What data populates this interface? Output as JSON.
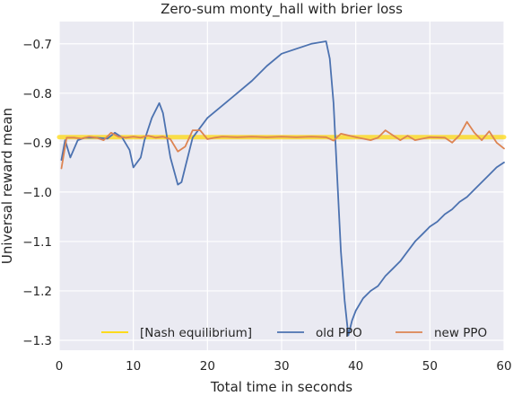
{
  "chart_data": {
    "type": "line",
    "title": "Zero-sum monty_hall with brier loss",
    "xlabel": "Total time in seconds",
    "ylabel": "Universal reward mean",
    "xlim": [
      0,
      60
    ],
    "ylim": [
      -1.32,
      -0.655
    ],
    "xticks": [
      0,
      10,
      20,
      30,
      40,
      50,
      60
    ],
    "xtick_labels": [
      "0",
      "10",
      "20",
      "30",
      "40",
      "50",
      "60"
    ],
    "yticks": [
      -1.3,
      -1.2,
      -1.1,
      -1.0,
      -0.9,
      -0.8,
      -0.7
    ],
    "ytick_labels": [
      "−1.3",
      "−1.2",
      "−1.1",
      "−1.0",
      "−0.9",
      "−0.8",
      "−0.7"
    ],
    "grid": true,
    "legend_position": "bottom-right",
    "background": "#eaeaf2",
    "series": [
      {
        "name": "[Nash equilibrium]",
        "color": "#ffd700",
        "x": [
          0,
          60
        ],
        "y": [
          -0.8889,
          -0.8889
        ]
      },
      {
        "name": "old PPO",
        "color": "#4c72b0",
        "x": [
          0.3,
          0.8,
          1.5,
          2.5,
          3.5,
          5,
          6.5,
          7.5,
          8.5,
          9.5,
          10,
          11,
          11.5,
          12.5,
          13.5,
          14,
          15,
          16,
          16.5,
          17,
          18,
          20,
          22,
          24,
          26,
          28,
          30,
          32,
          34,
          36,
          36.5,
          37,
          37.5,
          38,
          38.5,
          39,
          39.5,
          40,
          41,
          42,
          43,
          44,
          45,
          46,
          47,
          48,
          49,
          50,
          51,
          52,
          53,
          54,
          55,
          56,
          57,
          58,
          59,
          60
        ],
        "y": [
          -0.935,
          -0.895,
          -0.93,
          -0.895,
          -0.89,
          -0.89,
          -0.892,
          -0.88,
          -0.89,
          -0.915,
          -0.95,
          -0.93,
          -0.895,
          -0.85,
          -0.82,
          -0.84,
          -0.93,
          -0.985,
          -0.98,
          -0.95,
          -0.89,
          -0.85,
          -0.825,
          -0.8,
          -0.775,
          -0.745,
          -0.72,
          -0.71,
          -0.7,
          -0.695,
          -0.73,
          -0.82,
          -0.97,
          -1.12,
          -1.22,
          -1.29,
          -1.26,
          -1.24,
          -1.215,
          -1.2,
          -1.19,
          -1.17,
          -1.155,
          -1.14,
          -1.12,
          -1.1,
          -1.085,
          -1.07,
          -1.06,
          -1.045,
          -1.035,
          -1.02,
          -1.01,
          -0.995,
          -0.98,
          -0.965,
          -0.95,
          -0.94
        ]
      },
      {
        "name": "new PPO",
        "color": "#dd8452",
        "x": [
          0.3,
          1,
          2,
          3,
          4,
          5,
          6,
          7,
          8,
          9,
          10,
          11,
          12,
          13,
          14,
          15,
          16,
          17,
          18,
          19,
          20,
          21,
          22,
          24,
          26,
          28,
          30,
          32,
          34,
          36,
          37,
          38,
          40,
          42,
          43,
          44,
          45,
          46,
          47,
          48,
          50,
          52,
          53,
          54,
          55,
          56,
          57,
          58,
          59,
          60
        ],
        "y": [
          -0.952,
          -0.89,
          -0.89,
          -0.892,
          -0.888,
          -0.89,
          -0.895,
          -0.88,
          -0.888,
          -0.89,
          -0.888,
          -0.89,
          -0.886,
          -0.89,
          -0.888,
          -0.893,
          -0.918,
          -0.908,
          -0.875,
          -0.875,
          -0.893,
          -0.89,
          -0.888,
          -0.889,
          -0.888,
          -0.889,
          -0.888,
          -0.889,
          -0.888,
          -0.889,
          -0.896,
          -0.882,
          -0.889,
          -0.895,
          -0.89,
          -0.875,
          -0.885,
          -0.895,
          -0.886,
          -0.895,
          -0.889,
          -0.89,
          -0.9,
          -0.885,
          -0.858,
          -0.88,
          -0.895,
          -0.877,
          -0.9,
          -0.912
        ]
      }
    ]
  }
}
